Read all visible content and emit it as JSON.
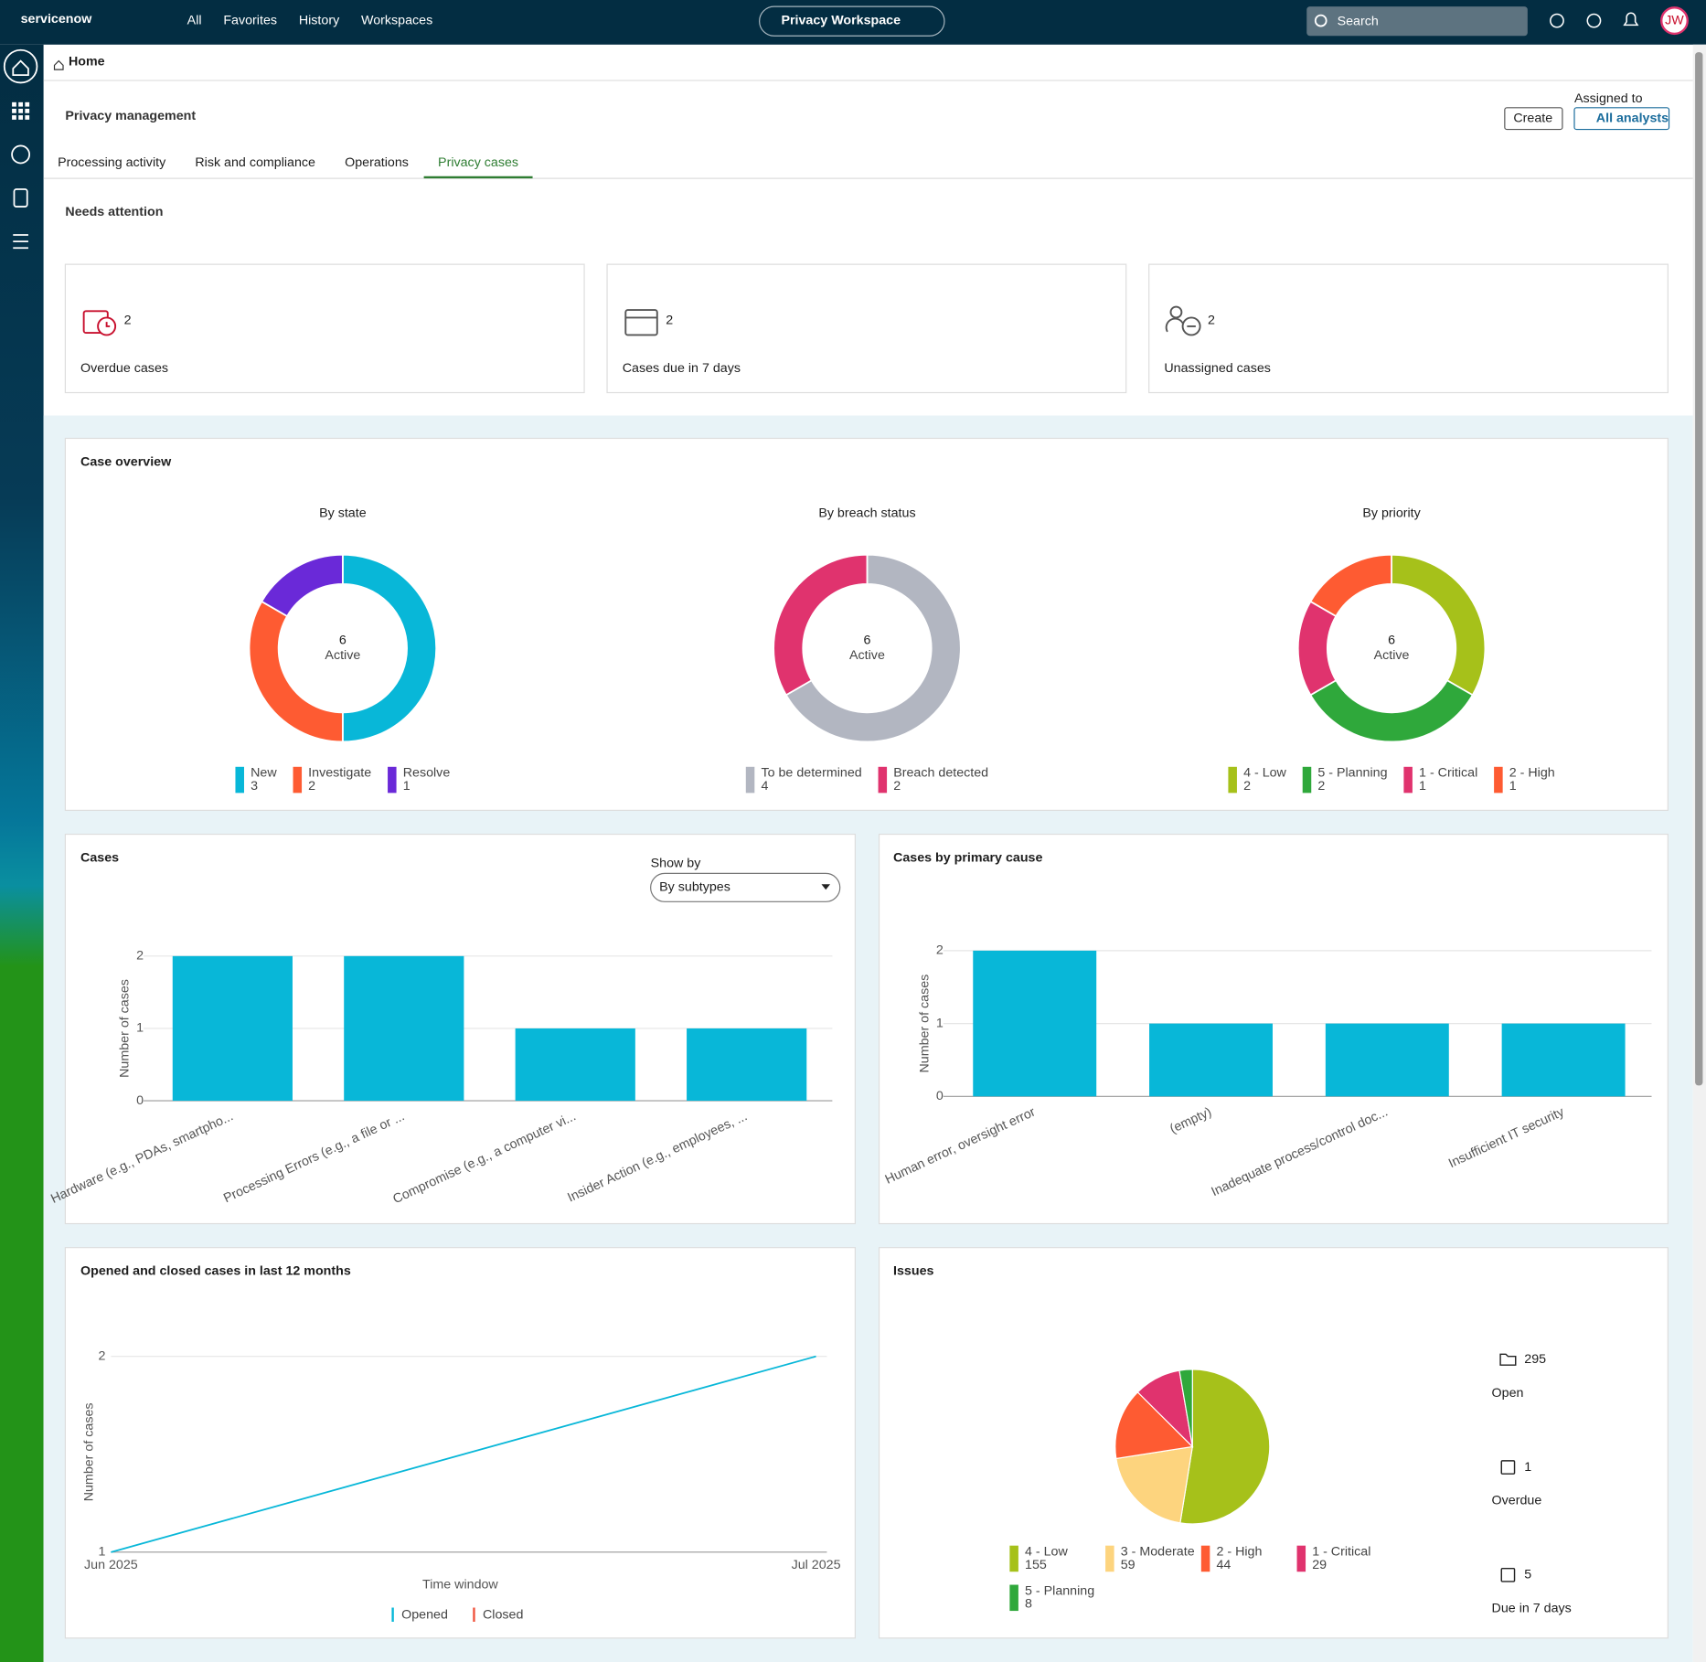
{
  "nav": {
    "brand": "servicenow",
    "menu": [
      "All",
      "Favorites",
      "History",
      "Workspaces"
    ],
    "workspace": "Privacy Workspace",
    "search": "Search",
    "avatar": "JW"
  },
  "breadcrumb": "Home",
  "header": {
    "title": "Privacy management",
    "create": "Create",
    "assigned_label": "Assigned to",
    "assigned": "All analysts"
  },
  "tabs": {
    "items": [
      "Processing activity",
      "Risk and compliance",
      "Operations",
      "Privacy cases"
    ],
    "active": 3
  },
  "needs_attention": {
    "title": "Needs attention",
    "cards": [
      {
        "value": 2,
        "label": "Overdue cases"
      },
      {
        "value": 2,
        "label": "Cases due in 7 days"
      },
      {
        "value": 2,
        "label": "Unassigned cases"
      }
    ]
  },
  "case_overview": {
    "title": "Case overview"
  },
  "chart_data": [
    {
      "type": "donut",
      "title": "By state",
      "center_value": 6,
      "center_label": "Active",
      "categories": [
        "New",
        "Investigate",
        "Resolve"
      ],
      "values": [
        3,
        2,
        1
      ],
      "colors": [
        "#08b7d8",
        "#fe5b32",
        "#6a29d8"
      ]
    },
    {
      "type": "donut",
      "title": "By breach status",
      "center_value": 6,
      "center_label": "Active",
      "categories": [
        "To be determined",
        "Breach detected"
      ],
      "values": [
        4,
        2
      ],
      "colors": [
        "#b2b6c1",
        "#e0336e"
      ]
    },
    {
      "type": "donut",
      "title": "By priority",
      "center_value": 6,
      "center_label": "Active",
      "categories": [
        "4 - Low",
        "5 - Planning",
        "1 - Critical",
        "2 - High"
      ],
      "values": [
        2,
        2,
        1,
        1
      ],
      "colors": [
        "#a6c11a",
        "#2fa83b",
        "#e0336e",
        "#fe5b32"
      ]
    },
    {
      "type": "bar",
      "title": "Cases",
      "control_label": "Show by",
      "control_value": "By subtypes",
      "y_label": "Number of cases",
      "categories": [
        "Hardware (e.g., PDAs, smartpho...",
        "Processing Errors (e.g., a file or ...",
        "Compromise (e.g., a computer vi...",
        "Insider Action (e.g., employees, ..."
      ],
      "values": [
        2,
        2,
        1,
        1
      ],
      "color": "#08b7d8",
      "ylim": [
        0,
        2
      ],
      "yticks": [
        0,
        1,
        2
      ],
      "grid": true
    },
    {
      "type": "bar",
      "title": "Cases by primary cause",
      "y_label": "Number of cases",
      "categories": [
        "Human error, oversight error",
        "(empty)",
        "Inadequate process/control doc...",
        "Insufficient IT security"
      ],
      "values": [
        2,
        1,
        1,
        1
      ],
      "color": "#08b7d8",
      "ylim": [
        0,
        2
      ],
      "yticks": [
        0,
        1,
        2
      ],
      "grid": true
    },
    {
      "type": "line",
      "title": "Opened and closed cases in last 12 months",
      "y_label": "Number of cases",
      "x_label": "Time window",
      "categories": [
        "Jun 2025",
        "Jul 2025"
      ],
      "series": [
        {
          "name": "Opened",
          "color": "#08b7d8",
          "values": [
            1,
            2
          ]
        },
        {
          "name": "Closed",
          "color": "#f0533d",
          "values": [
            null,
            null
          ]
        }
      ],
      "ylim": [
        1,
        2
      ],
      "yticks": [
        1,
        2
      ],
      "grid": true
    },
    {
      "type": "pie",
      "title": "Issues",
      "categories": [
        "4 - Low",
        "3 - Moderate",
        "2 - High",
        "1 - Critical",
        "5 - Planning"
      ],
      "values": [
        155,
        59,
        44,
        29,
        8
      ],
      "colors": [
        "#a6c11a",
        "#fdd47e",
        "#fe5b32",
        "#e0336e",
        "#2fa83b"
      ]
    }
  ],
  "issue_stats": [
    {
      "value": 295,
      "label": "Open"
    },
    {
      "value": 1,
      "label": "Overdue"
    },
    {
      "value": 5,
      "label": "Due in 7 days"
    }
  ]
}
